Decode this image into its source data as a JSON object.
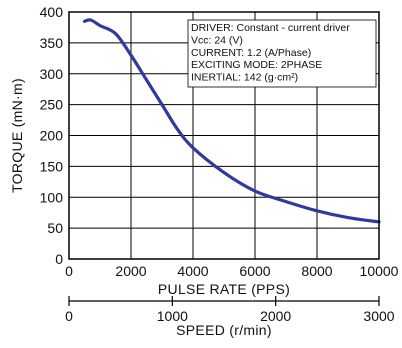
{
  "chart_data": {
    "type": "line",
    "colors": {
      "curve": "#2e3a9e",
      "frame": "#000000"
    },
    "grid": true,
    "xlabel": "PULSE RATE (PPS)",
    "ylabel": "TORQUE (mN·m)",
    "xlim": [
      0,
      10000
    ],
    "ylim": [
      0,
      400
    ],
    "x_ticks": [
      "0",
      "2000",
      "4000",
      "6000",
      "8000",
      "10000"
    ],
    "y_ticks": [
      "0",
      "50",
      "100",
      "150",
      "200",
      "250",
      "300",
      "350",
      "400"
    ],
    "secondary_axis": {
      "label": "SPEED (r/min)",
      "range": [
        0,
        3000
      ],
      "ticks": [
        "0",
        "1000",
        "2000",
        "3000"
      ]
    },
    "info_box": [
      "DRIVER: Constant - current driver",
      "Vcc: 24 (V)",
      "CURRENT: 1.2 (A/Phase)",
      "EXCITING MODE: 2PHASE",
      "INERTIAL: 142 (g·cm²)"
    ],
    "series": [
      {
        "x": [
          500,
          700,
          1000,
          1500,
          2000,
          2500,
          3000,
          3500,
          4000,
          5000,
          6000,
          7000,
          8000,
          9000,
          10000
        ],
        "y": [
          385,
          387,
          378,
          365,
          330,
          290,
          250,
          210,
          180,
          140,
          110,
          93,
          78,
          67,
          60
        ]
      }
    ]
  }
}
